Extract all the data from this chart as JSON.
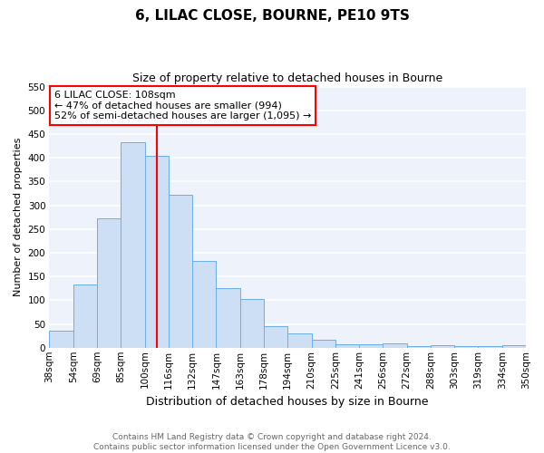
{
  "title": "6, LILAC CLOSE, BOURNE, PE10 9TS",
  "subtitle": "Size of property relative to detached houses in Bourne",
  "xlabel": "Distribution of detached houses by size in Bourne",
  "ylabel": "Number of detached properties",
  "bar_labels": [
    "38sqm",
    "54sqm",
    "69sqm",
    "85sqm",
    "100sqm",
    "116sqm",
    "132sqm",
    "147sqm",
    "163sqm",
    "178sqm",
    "194sqm",
    "210sqm",
    "225sqm",
    "241sqm",
    "256sqm",
    "272sqm",
    "288sqm",
    "303sqm",
    "319sqm",
    "334sqm",
    "350sqm"
  ],
  "bar_values": [
    35,
    133,
    272,
    432,
    405,
    322,
    183,
    125,
    103,
    46,
    30,
    16,
    7,
    8,
    10,
    4,
    5,
    4,
    4,
    5
  ],
  "bar_color": "#ccdff5",
  "bar_edge_color": "#6aaee8",
  "ylim": [
    0,
    550
  ],
  "yticks": [
    0,
    50,
    100,
    150,
    200,
    250,
    300,
    350,
    400,
    450,
    500,
    550
  ],
  "annotation_box_text": [
    "6 LILAC CLOSE: 108sqm",
    "← 47% of detached houses are smaller (994)",
    "52% of semi-detached houses are larger (1,095) →"
  ],
  "footnote1": "Contains HM Land Registry data © Crown copyright and database right 2024.",
  "footnote2": "Contains public sector information licensed under the Open Government Licence v3.0.",
  "bg_color": "#edf2fb",
  "grid_color": "#ffffff",
  "title_fontsize": 11,
  "subtitle_fontsize": 9,
  "xlabel_fontsize": 9,
  "ylabel_fontsize": 8,
  "tick_fontsize": 7.5,
  "footnote_fontsize": 6.5,
  "annot_fontsize": 8
}
